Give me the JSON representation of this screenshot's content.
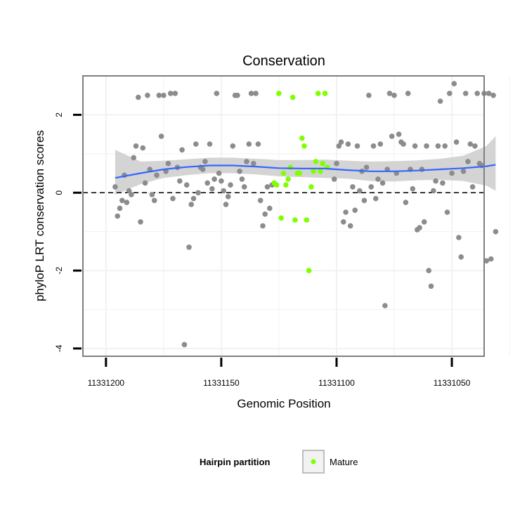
{
  "chart_data": {
    "type": "scatter",
    "title": "Conservation",
    "xlabel": "Genomic Position",
    "ylabel": "phyloP LRT conservation scores",
    "x_reversed": true,
    "xlim": [
      11331036,
      11331210
    ],
    "ylim": [
      -4.2,
      3.0
    ],
    "x_ticks": [
      11331200,
      11331150,
      11331100,
      11331050
    ],
    "x_tick_labels": [
      "11331200",
      "11331150",
      "11331100",
      "11331050"
    ],
    "y_ticks": [
      -4,
      -2,
      0,
      2
    ],
    "y_tick_labels": [
      "-4",
      "-2",
      "0",
      "2"
    ],
    "grid": true,
    "reference_line": {
      "y": 0,
      "style": "dashed"
    },
    "legend": {
      "title": "Hairpin partition",
      "position": "bottom",
      "entries": [
        {
          "label": "Mature",
          "color": "#7FFF00"
        }
      ]
    },
    "colors": {
      "other": "#8C8C8C",
      "mature": "#7FFF00",
      "smooth": "#3366FF",
      "band": "#CCCCCC",
      "panel_border": "#7F7F7F",
      "grid": "#F2F2F2"
    },
    "series": [
      {
        "name": "",
        "color": "#8C8C8C",
        "points": [
          [
            11331196,
            0.15
          ],
          [
            11331195,
            -0.6
          ],
          [
            11331194,
            -0.4
          ],
          [
            11331193,
            -0.2
          ],
          [
            11331192,
            0.45
          ],
          [
            11331191,
            -0.25
          ],
          [
            11331190,
            0.05
          ],
          [
            11331189,
            -0.05
          ],
          [
            11331188,
            0.9
          ],
          [
            11331187,
            1.2
          ],
          [
            11331186,
            2.45
          ],
          [
            11331185,
            -0.75
          ],
          [
            11331184,
            1.15
          ],
          [
            11331183,
            0.25
          ],
          [
            11331182,
            2.5
          ],
          [
            11331181,
            0.6
          ],
          [
            11331180,
            -0.05
          ],
          [
            11331179,
            -0.2
          ],
          [
            11331178,
            0.45
          ],
          [
            11331177,
            2.5
          ],
          [
            11331176,
            1.45
          ],
          [
            11331175,
            2.5
          ],
          [
            11331174,
            0.55
          ],
          [
            11331173,
            0.75
          ],
          [
            11331172,
            2.55
          ],
          [
            11331171,
            -0.15
          ],
          [
            11331170,
            2.55
          ],
          [
            11331169,
            0.65
          ],
          [
            11331168,
            0.3
          ],
          [
            11331167,
            1.1
          ],
          [
            11331166,
            -3.9
          ],
          [
            11331165,
            0.2
          ],
          [
            11331164,
            -1.4
          ],
          [
            11331163,
            -0.3
          ],
          [
            11331162,
            -0.15
          ],
          [
            11331161,
            1.25
          ],
          [
            11331160,
            0.0
          ],
          [
            11331159,
            0.65
          ],
          [
            11331158,
            0.6
          ],
          [
            11331157,
            0.8
          ],
          [
            11331156,
            0.25
          ],
          [
            11331155,
            1.25
          ],
          [
            11331154,
            0.1
          ],
          [
            11331153,
            0.35
          ],
          [
            11331152,
            2.55
          ],
          [
            11331151,
            0.5
          ],
          [
            11331150,
            0.3
          ],
          [
            11331149,
            0.05
          ],
          [
            11331148,
            -0.3
          ],
          [
            11331147,
            -0.1
          ],
          [
            11331146,
            0.2
          ],
          [
            11331145,
            1.2
          ],
          [
            11331144,
            2.5
          ],
          [
            11331143,
            2.5
          ],
          [
            11331142,
            0.55
          ],
          [
            11331141,
            0.35
          ],
          [
            11331140,
            0.15
          ],
          [
            11331139,
            0.8
          ],
          [
            11331138,
            1.25
          ],
          [
            11331137,
            2.55
          ],
          [
            11331136,
            0.75
          ],
          [
            11331135,
            2.55
          ],
          [
            11331134,
            1.25
          ],
          [
            11331133,
            -0.2
          ],
          [
            11331132,
            -0.85
          ],
          [
            11331131,
            -0.55
          ],
          [
            11331130,
            0.15
          ],
          [
            11331129,
            -0.4
          ],
          [
            11331128,
            0.2
          ],
          [
            11331101,
            0.35
          ],
          [
            11331100,
            0.75
          ],
          [
            11331099,
            1.2
          ],
          [
            11331098,
            1.3
          ],
          [
            11331097,
            -0.75
          ],
          [
            11331096,
            -0.5
          ],
          [
            11331095,
            1.25
          ],
          [
            11331094,
            -0.85
          ],
          [
            11331093,
            0.15
          ],
          [
            11331092,
            -0.45
          ],
          [
            11331091,
            1.2
          ],
          [
            11331090,
            0.05
          ],
          [
            11331089,
            0.55
          ],
          [
            11331088,
            -0.2
          ],
          [
            11331087,
            0.65
          ],
          [
            11331086,
            2.5
          ],
          [
            11331085,
            0.15
          ],
          [
            11331084,
            1.2
          ],
          [
            11331083,
            -0.15
          ],
          [
            11331082,
            0.35
          ],
          [
            11331081,
            1.25
          ],
          [
            11331080,
            0.25
          ],
          [
            11331079,
            -2.9
          ],
          [
            11331078,
            0.6
          ],
          [
            11331077,
            2.55
          ],
          [
            11331076,
            1.45
          ],
          [
            11331075,
            2.5
          ],
          [
            11331074,
            0.5
          ],
          [
            11331073,
            1.5
          ],
          [
            11331072,
            1.3
          ],
          [
            11331071,
            1.25
          ],
          [
            11331070,
            -0.25
          ],
          [
            11331069,
            2.55
          ],
          [
            11331068,
            0.6
          ],
          [
            11331067,
            0.1
          ],
          [
            11331066,
            1.2
          ],
          [
            11331065,
            -0.95
          ],
          [
            11331064,
            -0.9
          ],
          [
            11331063,
            0.6
          ],
          [
            11331062,
            -0.75
          ],
          [
            11331061,
            1.2
          ],
          [
            11331060,
            -2.0
          ],
          [
            11331059,
            -2.4
          ],
          [
            11331058,
            0.05
          ],
          [
            11331057,
            0.3
          ],
          [
            11331056,
            1.2
          ],
          [
            11331055,
            2.35
          ],
          [
            11331054,
            0.25
          ],
          [
            11331053,
            1.2
          ],
          [
            11331052,
            -0.5
          ],
          [
            11331051,
            2.55
          ],
          [
            11331050,
            0.5
          ],
          [
            11331049,
            2.8
          ],
          [
            11331048,
            1.3
          ],
          [
            11331047,
            -1.15
          ],
          [
            11331046,
            -1.65
          ],
          [
            11331045,
            0.55
          ],
          [
            11331044,
            2.55
          ],
          [
            11331043,
            0.8
          ],
          [
            11331042,
            1.25
          ],
          [
            11331041,
            0.15
          ],
          [
            11331040,
            1.2
          ],
          [
            11331039,
            2.55
          ],
          [
            11331038,
            0.75
          ],
          [
            11331037,
            0.7
          ],
          [
            11331036,
            2.55
          ],
          [
            11331035,
            -1.75
          ],
          [
            11331034,
            2.55
          ],
          [
            11331033,
            -1.7
          ],
          [
            11331032,
            2.5
          ],
          [
            11331031,
            -1.0
          ]
        ]
      },
      {
        "name": "Mature",
        "color": "#7FFF00",
        "points": [
          [
            11331127,
            0.25
          ],
          [
            11331126,
            0.2
          ],
          [
            11331125,
            2.55
          ],
          [
            11331124,
            -0.65
          ],
          [
            11331123,
            0.5
          ],
          [
            11331122,
            0.2
          ],
          [
            11331121,
            0.35
          ],
          [
            11331120,
            0.65
          ],
          [
            11331119,
            2.45
          ],
          [
            11331118,
            -0.7
          ],
          [
            11331117,
            0.5
          ],
          [
            11331116,
            0.5
          ],
          [
            11331115,
            1.4
          ],
          [
            11331114,
            1.2
          ],
          [
            11331113,
            -0.7
          ],
          [
            11331112,
            -2.0
          ],
          [
            11331111,
            0.15
          ],
          [
            11331110,
            0.55
          ],
          [
            11331109,
            0.8
          ],
          [
            11331108,
            2.55
          ],
          [
            11331107,
            0.55
          ],
          [
            11331106,
            0.75
          ],
          [
            11331105,
            2.55
          ],
          [
            11331104,
            0.65
          ]
        ]
      }
    ],
    "smooth": {
      "method": "loess",
      "x": [
        11331196,
        11331185,
        11331175,
        11331165,
        11331155,
        11331145,
        11331135,
        11331125,
        11331115,
        11331105,
        11331095,
        11331085,
        11331075,
        11331065,
        11331055,
        11331045,
        11331035,
        11331031
      ],
      "y": [
        0.38,
        0.5,
        0.6,
        0.66,
        0.7,
        0.7,
        0.67,
        0.63,
        0.62,
        0.62,
        0.58,
        0.55,
        0.55,
        0.57,
        0.6,
        0.63,
        0.68,
        0.72
      ],
      "lower": [
        -0.05,
        0.22,
        0.38,
        0.45,
        0.5,
        0.5,
        0.47,
        0.42,
        0.4,
        0.38,
        0.36,
        0.3,
        0.29,
        0.32,
        0.33,
        0.3,
        0.18,
        0.05
      ],
      "upper": [
        1.1,
        0.8,
        0.82,
        0.86,
        0.9,
        0.9,
        0.87,
        0.84,
        0.84,
        0.85,
        0.82,
        0.8,
        0.81,
        0.83,
        0.87,
        0.95,
        1.2,
        1.45
      ]
    }
  }
}
